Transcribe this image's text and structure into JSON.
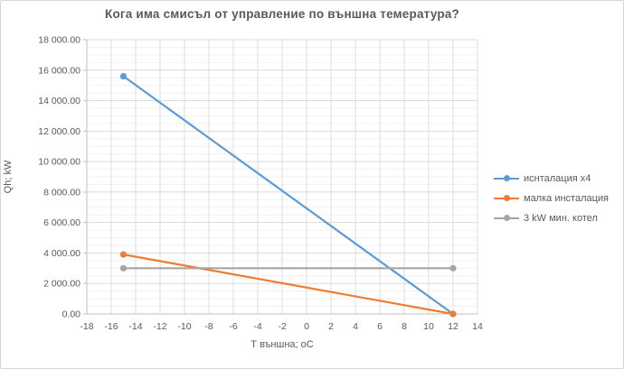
{
  "window": {
    "background": "#ffffff",
    "border_color": "#d6d6d6"
  },
  "chart_data": {
    "type": "line",
    "title": "Кога има смисъл от управление по външна темература?",
    "xlabel": "Т външна; оС",
    "ylabel": "Qh; kW",
    "xlim": [
      -18,
      14
    ],
    "ylim": [
      0,
      18000
    ],
    "x_ticks": [
      -18,
      -16,
      -14,
      -12,
      -10,
      -8,
      -6,
      -4,
      -2,
      0,
      2,
      4,
      6,
      8,
      10,
      12,
      14
    ],
    "y_ticks": [
      0,
      2000,
      4000,
      6000,
      8000,
      10000,
      12000,
      14000,
      16000,
      18000
    ],
    "y_tick_labels": [
      "0.00",
      "2 000.00",
      "4 000.00",
      "6 000.00",
      "8 000.00",
      "10 000.00",
      "12 000.00",
      "14 000.00",
      "16 000.00",
      "18 000.00"
    ],
    "y_minor_step": 500,
    "grid": true,
    "legend_position": "right",
    "series": [
      {
        "name": "иснталация x4",
        "color": "#5B9BD5",
        "x": [
          -15,
          12
        ],
        "y": [
          15600,
          0
        ]
      },
      {
        "name": "малка инсталация",
        "color": "#ED7D31",
        "x": [
          -15,
          12
        ],
        "y": [
          3900,
          0
        ]
      },
      {
        "name": "3 kW мин. котел",
        "color": "#A5A5A5",
        "x": [
          -15,
          12
        ],
        "y": [
          3000,
          3000
        ]
      }
    ],
    "style": {
      "major_grid_color": "#dcdcdc",
      "minor_grid_color": "#f2f2f2",
      "axis_line_color": "#bfbfbf",
      "tick_label_color": "#595959"
    }
  }
}
